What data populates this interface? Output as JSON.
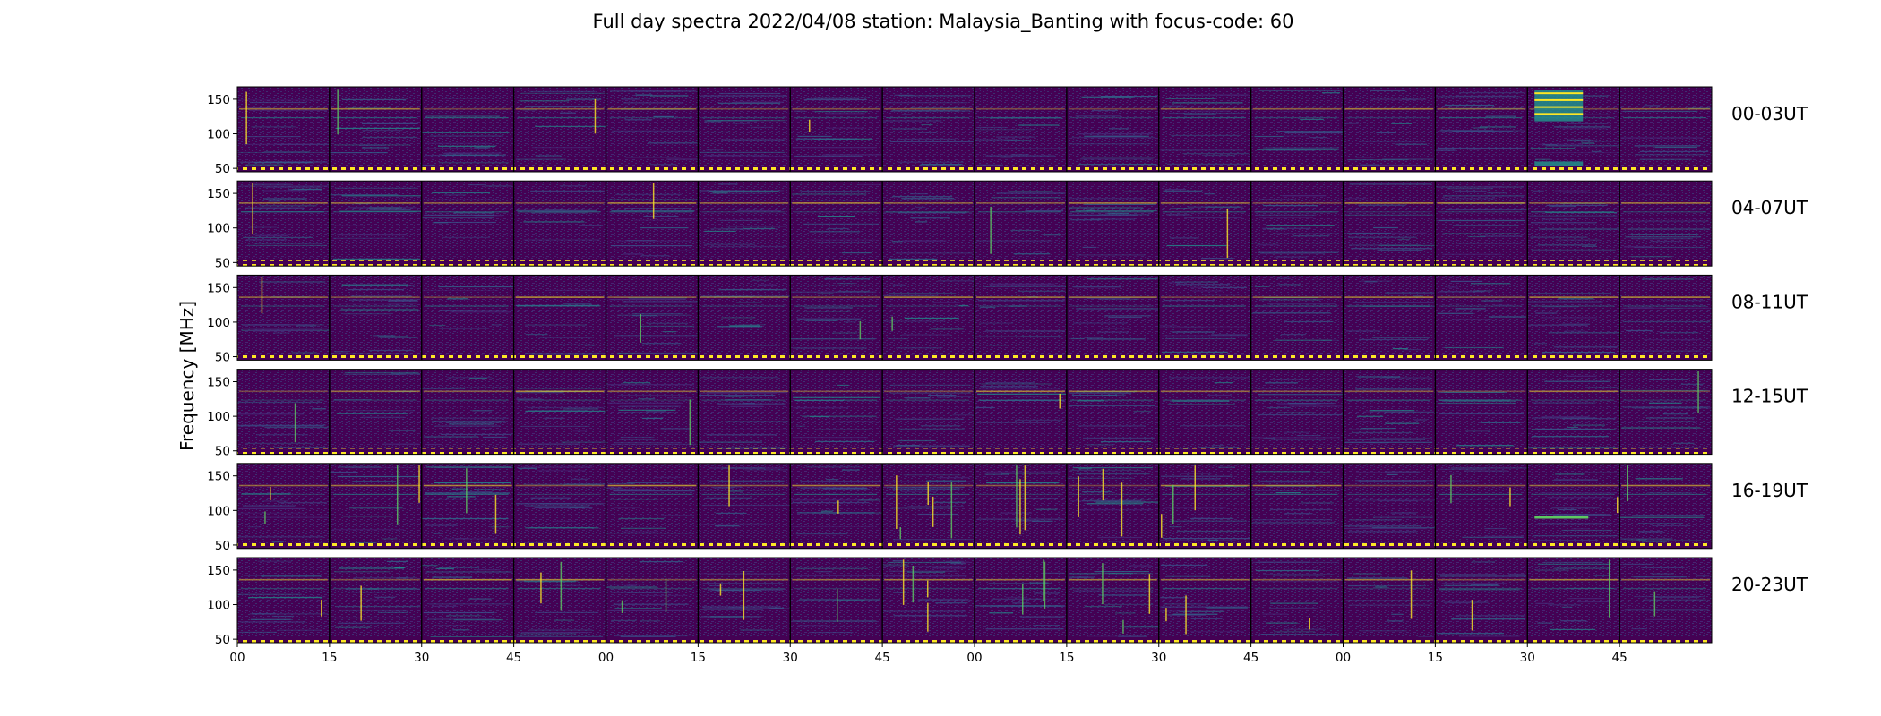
{
  "figure": {
    "title": "Full day spectra 2022/04/08 station: Malaysia_Banting with focus-code: 60",
    "ylabel": "Frequency [MHz]"
  },
  "colors": {
    "background": "#440154",
    "row_separator": "#ffffff",
    "segment_divider": "#000000",
    "burst_yellow": "#fde725",
    "teal": "#21918c",
    "green": "#5ec962"
  },
  "chart_data": {
    "type": "heatmap",
    "colormap": "viridis",
    "title": "Full day spectra 2022/04/08 station: Malaysia_Banting with focus-code: 60",
    "ylabel": "Frequency [MHz]",
    "ylim": [
      45,
      168
    ],
    "yticks": [
      50,
      100,
      150
    ],
    "xticks": [
      "00",
      "15",
      "30",
      "45",
      "00",
      "15",
      "30",
      "45",
      "00",
      "15",
      "30",
      "45",
      "00",
      "15",
      "30",
      "45"
    ],
    "segments_per_row": 16,
    "segment_minutes": 15,
    "rows": [
      {
        "label": "00-03UT",
        "hours": [
          0,
          3
        ]
      },
      {
        "label": "04-07UT",
        "hours": [
          4,
          7
        ]
      },
      {
        "label": "08-11UT",
        "hours": [
          8,
          11
        ]
      },
      {
        "label": "12-15UT",
        "hours": [
          12,
          15
        ]
      },
      {
        "label": "16-19UT",
        "hours": [
          16,
          19
        ]
      },
      {
        "label": "20-23UT",
        "hours": [
          20,
          23
        ]
      }
    ],
    "grid": false
  }
}
